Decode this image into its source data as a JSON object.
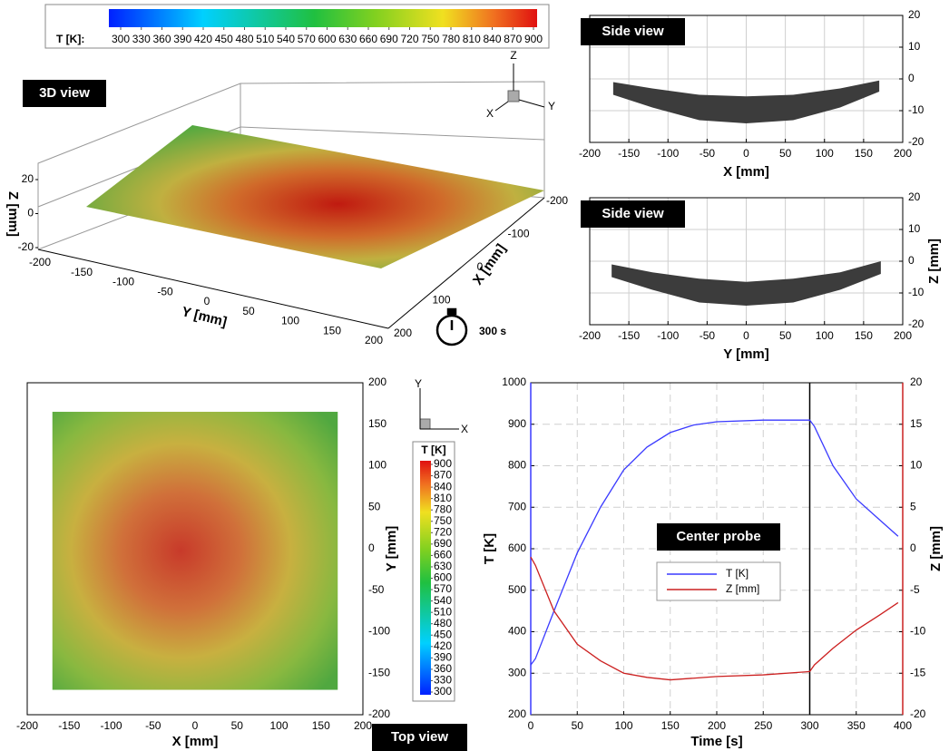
{
  "colorbar": {
    "label": "T [K]:",
    "ticks": [
      300,
      330,
      360,
      390,
      420,
      450,
      480,
      510,
      540,
      570,
      600,
      630,
      660,
      690,
      720,
      750,
      780,
      810,
      840,
      870,
      900
    ]
  },
  "view_3d": {
    "label": "3D view",
    "zlabel": "Z [mm]",
    "ylabel": "Y [mm]",
    "xlabel": "X [mm]",
    "zticks": [
      -20,
      0,
      20
    ],
    "yticks": [
      -200,
      -150,
      -100,
      -50,
      0,
      50,
      100,
      150,
      200
    ],
    "xticks": [
      -200,
      -100,
      0,
      100,
      200
    ],
    "triad": [
      "Z",
      "Y",
      "X"
    ],
    "time_label": "300 s"
  },
  "chart_data": [
    {
      "type": "band",
      "title": "Side view",
      "xlabel": "X [mm]",
      "color": "#3c3c3c",
      "x": [
        -170,
        -120,
        -60,
        0,
        60,
        120,
        170
      ],
      "z_top": [
        -1,
        -3,
        -5,
        -5.5,
        -5,
        -3,
        -0.5
      ],
      "z_bottom": [
        -5,
        -9,
        -13,
        -14,
        -13,
        -9,
        -4
      ],
      "xlim": [
        -200,
        200
      ],
      "xticks": [
        -200,
        -150,
        -100,
        -50,
        0,
        50,
        100,
        150,
        200
      ],
      "ylim": [
        -20,
        20
      ],
      "yticks": [
        -20,
        -10,
        0,
        10,
        20
      ],
      "grid": true
    },
    {
      "type": "band",
      "title": "Side view",
      "xlabel": "Y [mm]",
      "ylabel": "Z [mm]",
      "color": "#3c3c3c",
      "x": [
        -172,
        -120,
        -60,
        0,
        60,
        120,
        172
      ],
      "z_top": [
        -1,
        -3.5,
        -5.5,
        -6.5,
        -5.5,
        -3.5,
        0
      ],
      "z_bottom": [
        -5,
        -9,
        -13,
        -14,
        -13,
        -9,
        -4
      ],
      "xlim": [
        -200,
        200
      ],
      "xticks": [
        -200,
        -150,
        -100,
        -50,
        0,
        50,
        100,
        150,
        200
      ],
      "ylim": [
        -20,
        20
      ],
      "yticks": [
        -20,
        -10,
        0,
        10,
        20
      ],
      "grid": true
    },
    {
      "type": "heatmap",
      "title": "Top view",
      "xlabel": "X [mm]",
      "ylabel": "Y [mm]",
      "x_extent": [
        -170,
        170
      ],
      "y_extent": [
        -170,
        165
      ],
      "xlim": [
        -200,
        200
      ],
      "xticks": [
        -200,
        -150,
        -100,
        -50,
        0,
        50,
        100,
        150,
        200
      ],
      "ylim": [
        -200,
        200
      ],
      "yticks": [
        -200,
        -150,
        -100,
        -50,
        0,
        50,
        100,
        150,
        200
      ],
      "triad": [
        "Y",
        "X"
      ],
      "colorbar": {
        "label": "T [K]",
        "ticks": [
          300,
          330,
          360,
          390,
          420,
          450,
          480,
          510,
          540,
          570,
          600,
          630,
          660,
          690,
          720,
          750,
          780,
          810,
          840,
          870,
          900
        ]
      }
    },
    {
      "type": "line",
      "title": "Center probe",
      "xlabel": "Time [s]",
      "ylabel": "T [K]",
      "y2label": "Z [mm]",
      "xlim": [
        0,
        400
      ],
      "xticks": [
        0,
        50,
        100,
        150,
        200,
        250,
        300,
        350,
        400
      ],
      "ylim": [
        200,
        1000
      ],
      "yticks": [
        200,
        300,
        400,
        500,
        600,
        700,
        800,
        900,
        1000
      ],
      "y2lim": [
        -20,
        20
      ],
      "y2ticks": [
        -20,
        -15,
        -10,
        -5,
        0,
        5,
        10,
        15,
        20
      ],
      "marker_x": 300,
      "grid": true,
      "x": [
        0,
        5,
        25,
        50,
        75,
        100,
        125,
        150,
        175,
        200,
        250,
        300,
        305,
        325,
        350,
        375,
        395
      ],
      "series": [
        {
          "name": "T [K]",
          "color": "#3a3aff",
          "values": [
            320,
            335,
            450,
            590,
            700,
            790,
            845,
            880,
            898,
            906,
            910,
            910,
            895,
            800,
            720,
            670,
            630
          ]
        },
        {
          "name": "Z [mm]",
          "color": "#cc2020",
          "axis": "y2",
          "values": [
            -1,
            -2,
            -7.5,
            -11.5,
            -13.5,
            -15,
            -15.5,
            -15.8,
            -15.6,
            -15.4,
            -15.2,
            -14.8,
            -14,
            -12,
            -9.8,
            -8,
            -6.5
          ]
        }
      ]
    }
  ]
}
